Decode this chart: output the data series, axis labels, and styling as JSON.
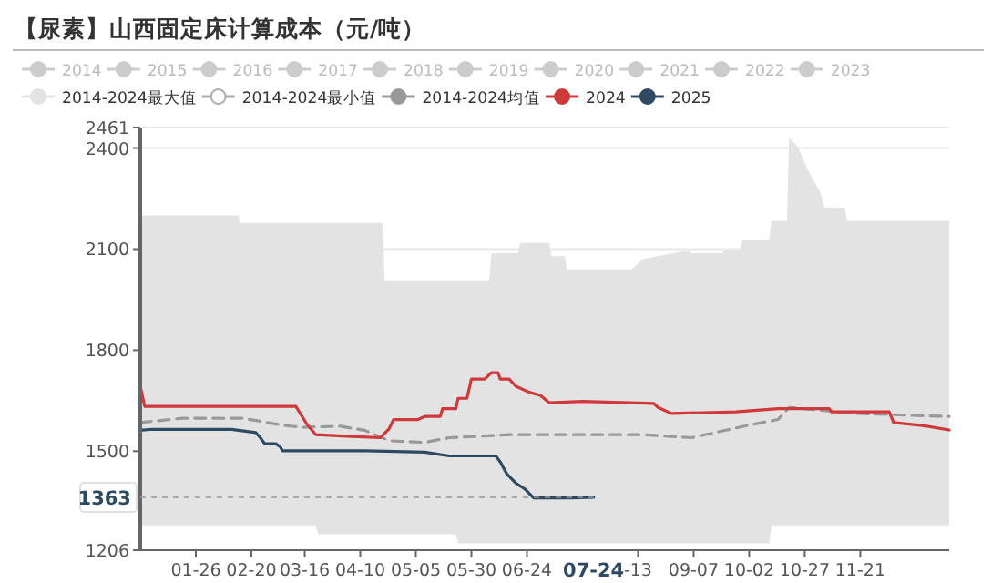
{
  "chart_data": {
    "type": "line",
    "title": "【尿素】山西固定床计算成本（元/吨）",
    "xlim": [
      "--01-01",
      "--12-31"
    ],
    "xticks": [
      {
        "value": "--01-26",
        "label": "01-26"
      },
      {
        "value": "--02-20",
        "label": "02-20"
      },
      {
        "value": "--03-16",
        "label": "03-16"
      },
      {
        "value": "--04-10",
        "label": "04-10"
      },
      {
        "value": "--05-05",
        "label": "05-05"
      },
      {
        "value": "--05-30",
        "label": "05-30"
      },
      {
        "value": "--06-24",
        "label": "06-24"
      },
      {
        "value": "--08-13",
        "label": "-13"
      },
      {
        "value": "--09-07",
        "label": "09-07"
      },
      {
        "value": "--10-02",
        "label": "10-02"
      },
      {
        "value": "--10-27",
        "label": "10-27"
      },
      {
        "value": "--11-21",
        "label": "11-21"
      }
    ],
    "ylim": [
      1206,
      2461
    ],
    "yticks": [
      1206,
      1500,
      1800,
      2100,
      2400,
      2461
    ],
    "grid": "y",
    "legend": "top",
    "marker": "none",
    "annotations": [
      {
        "text": "07-24",
        "x": "--07-24"
      },
      {
        "text": "1363",
        "x": "--07-24",
        "y": 1363
      }
    ],
    "series": [
      {
        "name": "2014",
        "color": "#cccccc"
      },
      {
        "name": "2015",
        "color": "#cccccc"
      },
      {
        "name": "2016",
        "color": "#cccccc"
      },
      {
        "name": "2017",
        "color": "#cccccc"
      },
      {
        "name": "2018",
        "color": "#cccccc"
      },
      {
        "name": "2019",
        "color": "#cccccc"
      },
      {
        "name": "2020",
        "color": "#cccccc"
      },
      {
        "name": "2021",
        "color": "#cccccc"
      },
      {
        "name": "2022",
        "color": "#cccccc"
      },
      {
        "name": "2023",
        "color": "#cccccc"
      },
      {
        "name": "2014-2024最大值",
        "type": "area",
        "color": "#e3e3e3",
        "x": [
          "--01-01",
          "--02-14",
          "--02-15",
          "--04-20",
          "--04-21",
          "--06-07",
          "--06-08",
          "--06-20",
          "--06-21",
          "--07-04",
          "--07-05",
          "--07-11",
          "--07-12",
          "--08-10",
          "--08-15",
          "--09-05",
          "--09-06",
          "--09-20",
          "--09-21",
          "--09-28",
          "--09-29",
          "--10-11",
          "--10-12",
          "--10-19",
          "--10-20",
          "--10-24",
          "--10-28",
          "--11-03",
          "--11-05",
          "--11-14",
          "--11-15",
          "--12-31"
        ],
        "values": [
          2200,
          2200,
          2178,
          2178,
          2007,
          2007,
          2088,
          2088,
          2118,
          2118,
          2079,
          2079,
          2040,
          2040,
          2070,
          2097,
          2088,
          2088,
          2097,
          2097,
          2128,
          2128,
          2183,
          2183,
          2430,
          2403,
          2340,
          2268,
          2223,
          2223,
          2183,
          2183
        ]
      },
      {
        "name": "2014-2024最小值",
        "type": "area",
        "color": "#ffffff",
        "x": [
          "--01-01",
          "--03-21",
          "--03-22",
          "--05-23",
          "--05-24",
          "--10-11",
          "--10-12",
          "--12-31"
        ],
        "values": [
          1280,
          1280,
          1253,
          1253,
          1226,
          1226,
          1280,
          1280
        ]
      },
      {
        "name": "2014-2024均值",
        "line_style": "dashed",
        "color": "#999999",
        "x": [
          "--01-01",
          "--01-20",
          "--02-16",
          "--03-07",
          "--03-15",
          "--04-01",
          "--04-12",
          "--04-23",
          "--05-09",
          "--05-20",
          "--06-16",
          "--08-15",
          "--09-06",
          "--10-01",
          "--10-15",
          "--10-20",
          "--11-19",
          "--12-31"
        ],
        "values": [
          1585,
          1598,
          1598,
          1576,
          1571,
          1574,
          1562,
          1531,
          1526,
          1540,
          1549,
          1549,
          1540,
          1576,
          1594,
          1630,
          1612,
          1603
        ]
      },
      {
        "name": "2024",
        "color": "#d0393a",
        "x": [
          "--01-01",
          "--01-03",
          "--03-12",
          "--03-14",
          "--03-17",
          "--03-21",
          "--04-06",
          "--04-19",
          "--04-23",
          "--04-25",
          "--05-06",
          "--05-09",
          "--05-16",
          "--05-17",
          "--05-23",
          "--05-24",
          "--05-28",
          "--05-30",
          "--06-05",
          "--06-08",
          "--06-11",
          "--06-12",
          "--06-16",
          "--06-19",
          "--06-25",
          "--06-30",
          "--07-04",
          "--07-19",
          "--08-20",
          "--08-22",
          "--08-28",
          "--09-26",
          "--10-15",
          "--11-07",
          "--11-08",
          "--12-04",
          "--12-06",
          "--12-19",
          "--12-31"
        ],
        "values": [
          1693,
          1633,
          1633,
          1612,
          1580,
          1549,
          1544,
          1540,
          1567,
          1594,
          1594,
          1603,
          1603,
          1626,
          1626,
          1657,
          1657,
          1714,
          1714,
          1733,
          1733,
          1714,
          1714,
          1693,
          1675,
          1666,
          1644,
          1648,
          1642,
          1630,
          1612,
          1617,
          1626,
          1626,
          1617,
          1617,
          1585,
          1576,
          1563
        ]
      },
      {
        "name": "2025",
        "color": "#2e4a62",
        "x": [
          "--01-01",
          "--01-06",
          "--02-11",
          "--02-22",
          "--02-24",
          "--02-26",
          "--03-03",
          "--03-05",
          "--03-06",
          "--04-12",
          "--05-09",
          "--05-20",
          "--06-10",
          "--06-12",
          "--06-15",
          "--06-19",
          "--06-23",
          "--06-27",
          "--07-14",
          "--07-24"
        ],
        "values": [
          1562,
          1565,
          1565,
          1555,
          1540,
          1522,
          1522,
          1513,
          1501,
          1501,
          1497,
          1486,
          1486,
          1468,
          1432,
          1405,
          1388,
          1361,
          1361,
          1363
        ]
      }
    ]
  }
}
